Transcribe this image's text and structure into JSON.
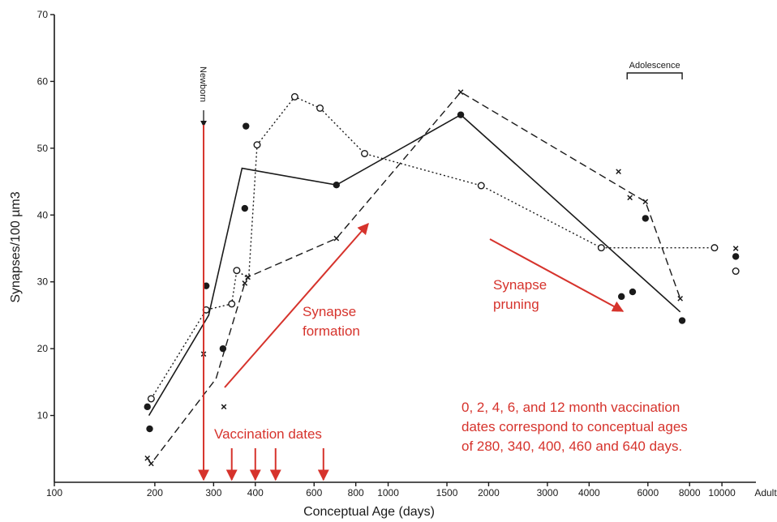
{
  "chart_data": {
    "type": "line",
    "xlabel": "Conceptual Age (days)",
    "ylabel": "Synapses/100 µm3",
    "x_scale": "log",
    "xlim": [
      100,
      12500
    ],
    "ylim": [
      0,
      70
    ],
    "x_ticks": [
      100,
      200,
      300,
      400,
      600,
      800,
      1000,
      1500,
      2000,
      3000,
      4000,
      6000,
      8000,
      10000
    ],
    "x_tick_labels": [
      "100",
      "200",
      "300",
      "400",
      "600",
      "800",
      "1000",
      "1500",
      "2000",
      "3000",
      "4000",
      "6000",
      "8000",
      "10000"
    ],
    "x_end_label": "Adult",
    "y_ticks": [
      10,
      20,
      30,
      40,
      50,
      60,
      70
    ],
    "y_tick_labels": [
      "10",
      "20",
      "30",
      "40",
      "50",
      "60",
      "70"
    ],
    "series": [
      {
        "style": "solid",
        "marker": "filled-circle",
        "line": [
          [
            192,
            10
          ],
          [
            290,
            25
          ],
          [
            365,
            47
          ],
          [
            700,
            44.5
          ],
          [
            1650,
            55
          ],
          [
            7500,
            25.5
          ]
        ],
        "points": [
          [
            190,
            11.3
          ],
          [
            193,
            8
          ],
          [
            285,
            29.4
          ],
          [
            320,
            20
          ],
          [
            372,
            41
          ],
          [
            375,
            53.3
          ],
          [
            700,
            44.5
          ],
          [
            1650,
            55
          ],
          [
            5000,
            27.8
          ],
          [
            5400,
            28.5
          ],
          [
            5900,
            39.5
          ],
          [
            7600,
            24.2
          ],
          [
            11000,
            33.8
          ]
        ]
      },
      {
        "style": "dotted",
        "marker": "open-circle",
        "line": [
          [
            195,
            12.5
          ],
          [
            285,
            25.8
          ],
          [
            340,
            26.7
          ],
          [
            352,
            31.7
          ],
          [
            382,
            30.5
          ],
          [
            405,
            50.5
          ],
          [
            525,
            57.7
          ],
          [
            625,
            56
          ],
          [
            850,
            49.2
          ],
          [
            1900,
            44.4
          ],
          [
            4350,
            35.1
          ],
          [
            9500,
            35.1
          ]
        ],
        "points": [
          [
            195,
            12.5
          ],
          [
            285,
            25.8
          ],
          [
            340,
            26.7
          ],
          [
            352,
            31.7
          ],
          [
            405,
            50.5
          ],
          [
            525,
            57.7
          ],
          [
            625,
            56
          ],
          [
            850,
            49.2
          ],
          [
            1900,
            44.4
          ],
          [
            4350,
            35.1
          ],
          [
            9500,
            35.1
          ],
          [
            11000,
            31.6
          ]
        ]
      },
      {
        "style": "dashed",
        "marker": "cross",
        "line": [
          [
            190,
            3.6
          ],
          [
            195,
            2.8
          ],
          [
            305,
            15.5
          ],
          [
            372,
            29.8
          ],
          [
            380,
            30.7
          ],
          [
            700,
            36.5
          ],
          [
            1650,
            58.4
          ],
          [
            5900,
            42
          ],
          [
            7500,
            27.5
          ]
        ],
        "points": [
          [
            190,
            3.6
          ],
          [
            195,
            2.8
          ],
          [
            280,
            19.2
          ],
          [
            322,
            11.3
          ],
          [
            372,
            29.8
          ],
          [
            380,
            30.7
          ],
          [
            700,
            36.5
          ],
          [
            1650,
            58.4
          ],
          [
            4900,
            46.5
          ],
          [
            5300,
            42.6
          ],
          [
            5900,
            42
          ],
          [
            7500,
            27.5
          ],
          [
            11000,
            35
          ]
        ]
      }
    ],
    "annotations": {
      "newborn": "Newborn",
      "newborn_x": 280,
      "adolescence": "Adolescence",
      "adolescence_range": [
        5200,
        7600
      ],
      "synapse_formation": [
        "Synapse",
        "formation"
      ],
      "synapse_pruning": [
        "Synapse",
        "pruning"
      ],
      "vaccination_label": "Vaccination dates",
      "vaccination_days": [
        280,
        340,
        400,
        460,
        640
      ],
      "vaccination_note": [
        "0, 2, 4, 6, and 12 month vaccination",
        "dates correspond to conceptual ages",
        "of 280, 340, 400, 460 and 640 days."
      ]
    },
    "colors": {
      "axis": "#1a1a1a",
      "series": "#1a1a1a",
      "annotation": "#d6332c"
    }
  }
}
